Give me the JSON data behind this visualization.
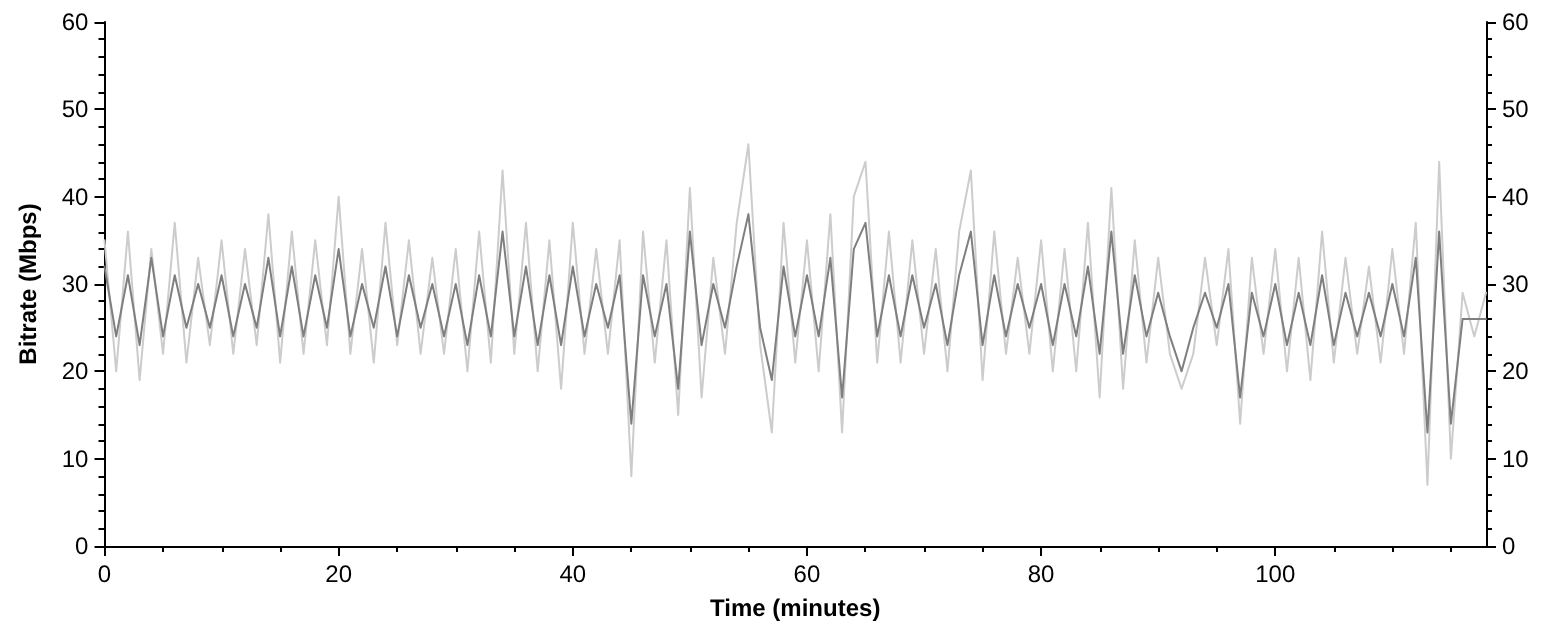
{
  "chart_data": {
    "type": "line",
    "xlabel": "Time (minutes)",
    "ylabel": "Bitrate (Mbps)",
    "x": [
      0,
      1,
      2,
      3,
      4,
      5,
      6,
      7,
      8,
      9,
      10,
      11,
      12,
      13,
      14,
      15,
      16,
      17,
      18,
      19,
      20,
      21,
      22,
      23,
      24,
      25,
      26,
      27,
      28,
      29,
      30,
      31,
      32,
      33,
      34,
      35,
      36,
      37,
      38,
      39,
      40,
      41,
      42,
      43,
      44,
      45,
      46,
      47,
      48,
      49,
      50,
      51,
      52,
      53,
      54,
      55,
      56,
      57,
      58,
      59,
      60,
      61,
      62,
      63,
      64,
      65,
      66,
      67,
      68,
      69,
      70,
      71,
      72,
      73,
      74,
      75,
      76,
      77,
      78,
      79,
      80,
      81,
      82,
      83,
      84,
      85,
      86,
      87,
      88,
      89,
      90,
      91,
      92,
      93,
      94,
      95,
      96,
      97,
      98,
      99,
      100,
      101,
      102,
      103,
      104,
      105,
      106,
      107,
      108,
      109,
      110,
      111,
      112,
      113,
      114,
      115,
      116,
      117,
      118
    ],
    "series": [
      {
        "color": "#cccccc",
        "values": [
          35,
          20,
          36,
          19,
          34,
          22,
          37,
          21,
          33,
          23,
          35,
          22,
          34,
          23,
          38,
          21,
          36,
          22,
          35,
          23,
          40,
          22,
          34,
          21,
          37,
          23,
          35,
          22,
          33,
          22,
          34,
          20,
          36,
          21,
          43,
          22,
          37,
          20,
          35,
          18,
          37,
          22,
          34,
          22,
          35,
          8,
          36,
          21,
          35,
          15,
          41,
          17,
          33,
          22,
          37,
          46,
          23,
          13,
          37,
          21,
          35,
          20,
          38,
          13,
          40,
          44,
          21,
          36,
          21,
          35,
          22,
          34,
          20,
          36,
          43,
          19,
          36,
          22,
          33,
          22,
          35,
          20,
          34,
          20,
          37,
          17,
          41,
          18,
          35,
          21,
          33,
          22,
          18,
          22,
          33,
          23,
          34,
          14,
          33,
          22,
          34,
          20,
          33,
          19,
          36,
          21,
          33,
          22,
          32,
          21,
          34,
          22,
          37,
          7,
          44,
          10,
          29,
          24,
          29
        ]
      },
      {
        "color": "#7f7f7f",
        "values": [
          32,
          24,
          31,
          23,
          33,
          24,
          31,
          25,
          30,
          25,
          31,
          24,
          30,
          25,
          33,
          24,
          32,
          24,
          31,
          25,
          34,
          24,
          30,
          25,
          32,
          24,
          31,
          25,
          30,
          24,
          30,
          23,
          31,
          24,
          36,
          24,
          32,
          23,
          31,
          23,
          32,
          24,
          30,
          25,
          31,
          14,
          31,
          24,
          30,
          18,
          36,
          23,
          30,
          25,
          32,
          38,
          25,
          19,
          32,
          24,
          31,
          24,
          33,
          17,
          34,
          37,
          24,
          31,
          24,
          31,
          25,
          30,
          23,
          31,
          36,
          23,
          31,
          24,
          30,
          25,
          30,
          23,
          30,
          24,
          32,
          22,
          36,
          22,
          31,
          24,
          29,
          24,
          20,
          25,
          29,
          25,
          30,
          17,
          29,
          24,
          30,
          23,
          29,
          23,
          31,
          23,
          29,
          24,
          29,
          24,
          30,
          24,
          33,
          13,
          36,
          14,
          26,
          26,
          26
        ]
      }
    ],
    "xlim": [
      0,
      118
    ],
    "xticks": [
      0,
      20,
      40,
      60,
      80,
      100
    ],
    "ylim": [
      0,
      60
    ],
    "yticks": [
      0,
      10,
      20,
      30,
      40,
      50,
      60
    ],
    "y2lim": [
      0,
      60
    ],
    "y2ticks": [
      0,
      10,
      20,
      30,
      40,
      50,
      60
    ],
    "grid": false,
    "marker": "none",
    "line_style": "solid"
  }
}
